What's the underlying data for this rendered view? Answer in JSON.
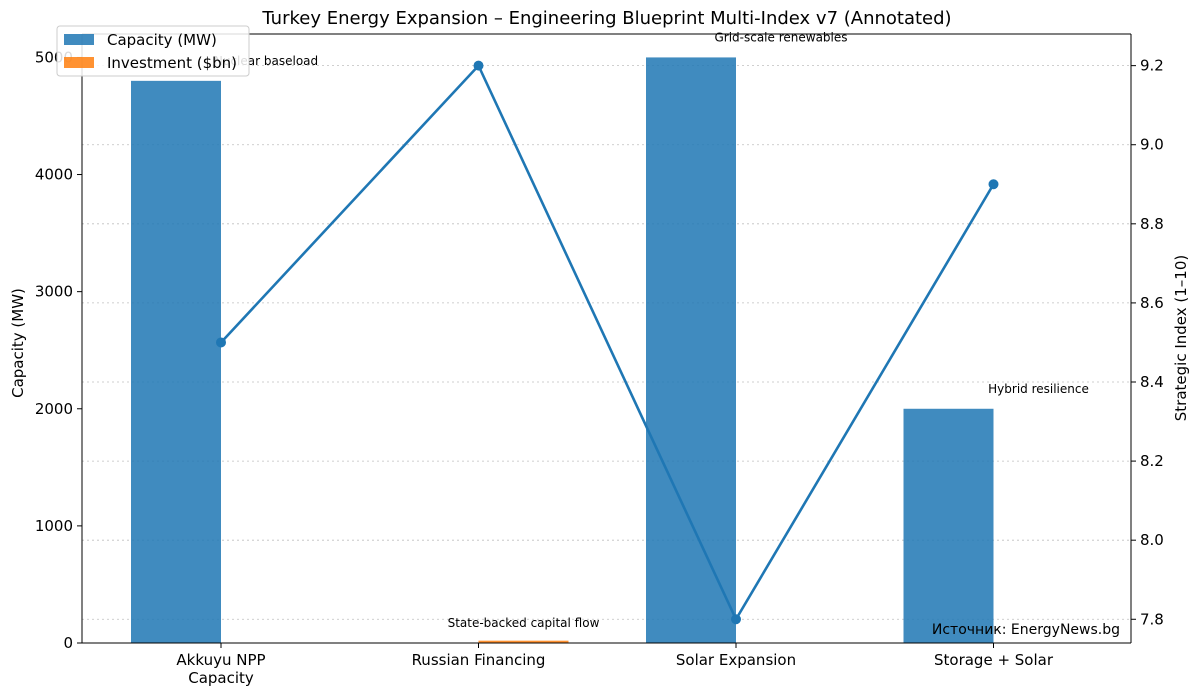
{
  "chart_data": {
    "type": "bar",
    "title": "Turkey Energy Expansion – Engineering Blueprint Multi-Index v7 (Annotated)",
    "categories": [
      "Akkuyu NPP\nCapacity",
      "Russian Financing",
      "Solar Expansion",
      "Storage + Solar"
    ],
    "ylabel": "Capacity (MW)",
    "y2label": "Strategic Index (1–10)",
    "ylim": [
      0,
      5200
    ],
    "y2lim": [
      7.74,
      9.28
    ],
    "yticks": [
      0,
      1000,
      2000,
      3000,
      4000,
      5000
    ],
    "y2ticks": [
      7.8,
      8.0,
      8.2,
      8.4,
      8.6,
      8.8,
      9.0,
      9.2
    ],
    "grid": true,
    "legend_position": "top-left",
    "series": [
      {
        "name": "Capacity (MW)",
        "type": "bar",
        "axis": "left",
        "color": "#1f77b4",
        "values": [
          4800,
          0,
          5000,
          2000
        ]
      },
      {
        "name": "Investment ($bn)",
        "type": "bar",
        "axis": "left",
        "color": "#ff7f0e",
        "values": [
          0,
          20,
          0,
          0
        ]
      },
      {
        "name": "Strategic Index",
        "type": "line",
        "axis": "right",
        "color": "#1f77b4",
        "values": [
          8.5,
          9.2,
          7.8,
          8.9
        ]
      }
    ],
    "annotations": [
      {
        "category": 0,
        "text": "Nuclear baseload"
      },
      {
        "category": 1,
        "text": "State-backed capital flow"
      },
      {
        "category": 2,
        "text": "Grid-scale renewables"
      },
      {
        "category": 3,
        "text": "Hybrid resilience"
      }
    ],
    "source": "Источник: EnergyNews.bg"
  },
  "colors": {
    "capacity": "#1f77b4",
    "investment": "#ff7f0e",
    "line": "#1f77b4",
    "grid": "#b0b0b0"
  }
}
